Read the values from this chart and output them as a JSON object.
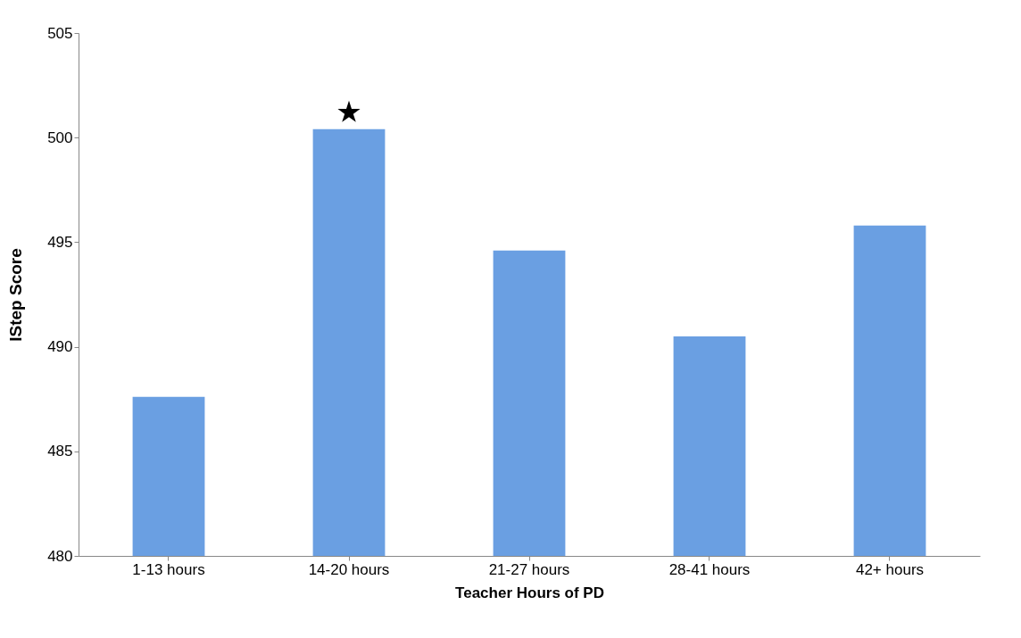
{
  "chart_data": {
    "type": "bar",
    "xlabel": "Teacher Hours of PD",
    "ylabel": "IStep Score",
    "categories": [
      "1-13 hours",
      "14-20 hours",
      "21-27 hours",
      "28-41 hours",
      "42+ hours"
    ],
    "series": [
      {
        "color": "#6a9fe2",
        "values": [
          487.6,
          500.4,
          494.6,
          490.5,
          495.8
        ]
      },
      {
        "type": "scatter",
        "x": [
          "14-20 hours"
        ],
        "values": [
          501.2
        ],
        "marker": "star",
        "color": "#000000"
      }
    ],
    "ylim": [
      480,
      505
    ],
    "yticks": [
      480,
      485,
      490,
      495,
      500,
      505
    ],
    "grid": false
  }
}
